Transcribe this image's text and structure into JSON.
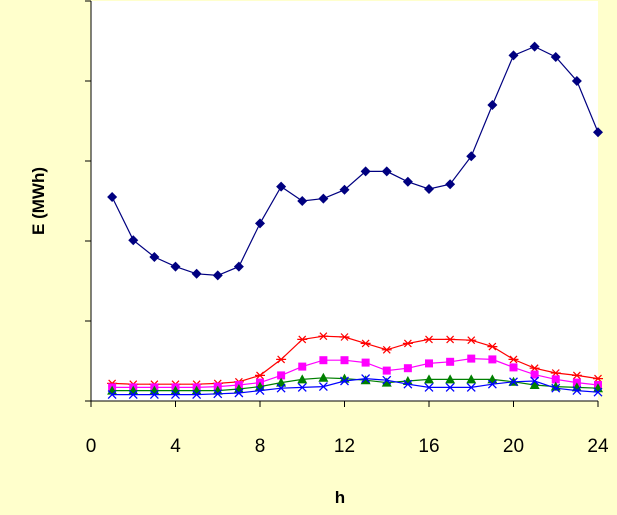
{
  "chart_data": {
    "type": "line",
    "title": "",
    "xlabel": "h",
    "ylabel": "E (MWh)",
    "xlim": [
      0,
      24
    ],
    "ylim": [
      0,
      500
    ],
    "x_ticks": [
      0,
      4,
      8,
      12,
      16,
      20,
      24
    ],
    "y_ticks": [
      0,
      100,
      200,
      300,
      400,
      500
    ],
    "y_tick_labels_shown": false,
    "grid": false,
    "legend": "none",
    "x": [
      1,
      2,
      3,
      4,
      5,
      6,
      7,
      8,
      9,
      10,
      11,
      12,
      13,
      14,
      15,
      16,
      17,
      18,
      19,
      20,
      21,
      22,
      23,
      24
    ],
    "series": [
      {
        "color": "#000080",
        "marker": "diamond",
        "values": [
          255,
          201,
          180,
          168,
          159,
          157,
          168,
          222,
          268,
          250,
          253,
          264,
          287,
          287,
          274,
          265,
          271,
          306,
          370,
          432,
          443,
          430,
          400,
          336
        ]
      },
      {
        "color": "#ff0000",
        "marker": "asterisk",
        "values": [
          22,
          21,
          21,
          21,
          21,
          22,
          24,
          32,
          52,
          77,
          81,
          80,
          72,
          64,
          72,
          77,
          77,
          76,
          68,
          52,
          41,
          35,
          32,
          28
        ]
      },
      {
        "color": "#ff00ff",
        "marker": "square",
        "values": [
          17,
          17,
          17,
          17,
          17,
          18,
          20,
          23,
          32,
          43,
          51,
          51,
          48,
          38,
          41,
          47,
          49,
          53,
          52,
          42,
          33,
          27,
          23,
          20
        ]
      },
      {
        "color": "#008000",
        "marker": "triangle",
        "values": [
          13,
          13,
          13,
          13,
          13,
          13,
          15,
          18,
          23,
          27,
          29,
          28,
          26,
          23,
          25,
          27,
          27,
          27,
          27,
          24,
          20,
          18,
          17,
          16
        ]
      },
      {
        "color": "#0000ff",
        "marker": "x",
        "values": [
          8,
          8,
          8,
          8,
          8,
          9,
          10,
          13,
          16,
          17,
          18,
          25,
          28,
          26,
          21,
          17,
          17,
          17,
          21,
          24,
          25,
          16,
          13,
          11
        ]
      }
    ]
  }
}
